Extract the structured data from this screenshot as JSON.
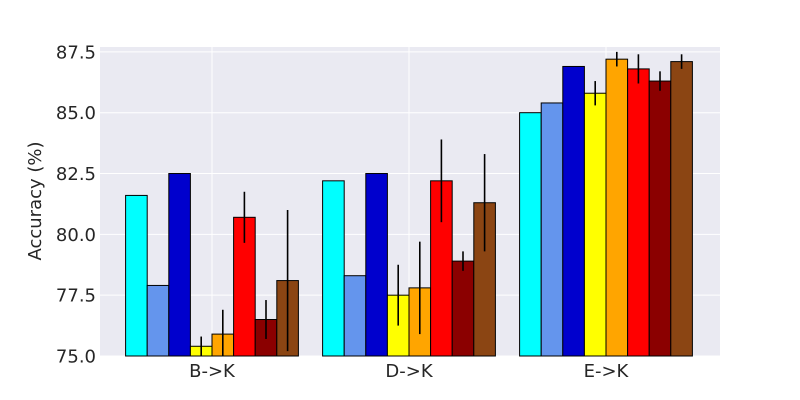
{
  "chart_data": {
    "type": "bar",
    "title": "",
    "xlabel": "",
    "ylabel": "Accuracy (%)",
    "categories": [
      "B->K",
      "D->K",
      "E->K"
    ],
    "ylim": [
      75.0,
      87.7
    ],
    "yticks": [
      75.0,
      77.5,
      80.0,
      82.5,
      85.0,
      87.5
    ],
    "ytick_labels": [
      "75.0",
      "77.5",
      "80.0",
      "82.5",
      "85.0",
      "87.5"
    ],
    "grid": true,
    "legend": "none",
    "background": "#EAEAF2",
    "series": [
      {
        "color": "#00FFFF",
        "values": [
          81.6,
          82.2,
          85.0
        ]
      },
      {
        "color": "#6495ED",
        "values": [
          77.9,
          78.3,
          85.4
        ]
      },
      {
        "color": "#0000CD",
        "values": [
          82.5,
          82.5,
          86.9
        ]
      },
      {
        "color": "#FFFF00",
        "values": [
          75.4,
          77.5,
          85.8
        ],
        "errors": [
          0.4,
          1.25,
          0.5
        ]
      },
      {
        "color": "#FFA500",
        "values": [
          75.9,
          77.8,
          87.2
        ],
        "errors": [
          1.0,
          1.9,
          0.3
        ]
      },
      {
        "color": "#FF0000",
        "values": [
          80.7,
          82.2,
          86.8
        ],
        "errors": [
          1.05,
          1.7,
          0.6
        ]
      },
      {
        "color": "#8B0000",
        "values": [
          76.5,
          78.9,
          86.3
        ],
        "errors": [
          0.8,
          0.4,
          0.4
        ]
      },
      {
        "color": "#8B4513",
        "values": [
          78.1,
          81.3,
          87.1
        ],
        "errors": [
          2.9,
          2.0,
          0.3
        ]
      }
    ]
  }
}
